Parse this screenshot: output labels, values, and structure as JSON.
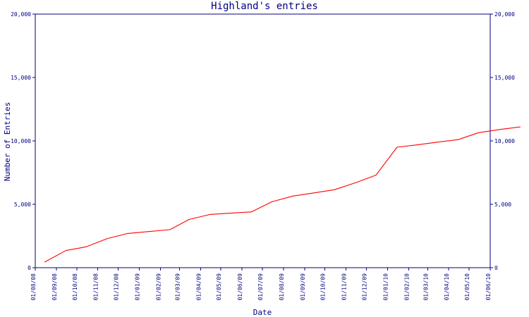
{
  "chart_data": {
    "type": "line",
    "title": "Highland's entries",
    "xlabel": "Date",
    "ylabel": "Number of Entries",
    "x_ticks": [
      "01/08/08",
      "01/09/08",
      "01/10/08",
      "01/11/08",
      "01/12/08",
      "01/01/09",
      "01/02/09",
      "01/03/09",
      "01/04/09",
      "01/05/09",
      "01/06/09",
      "01/07/09",
      "01/08/09",
      "01/09/09",
      "01/10/09",
      "01/11/09",
      "01/12/09",
      "01/01/10",
      "01/02/10",
      "01/03/10",
      "01/04/10",
      "01/05/10",
      "01/06/10"
    ],
    "y_ticks": [
      "0",
      "5,000",
      "10,000",
      "15,000",
      "20,000"
    ],
    "ylim": [
      0,
      20000
    ],
    "grid": false,
    "series": [
      {
        "color": "#ff0000",
        "points": [
          {
            "x": "2008-08-15",
            "y": 450
          },
          {
            "x": "2008-09-15",
            "y": 1350
          },
          {
            "x": "2008-10-15",
            "y": 1650
          },
          {
            "x": "2008-11-15",
            "y": 2300
          },
          {
            "x": "2008-12-15",
            "y": 2700
          },
          {
            "x": "2009-01-15",
            "y": 2850
          },
          {
            "x": "2009-02-15",
            "y": 3000
          },
          {
            "x": "2009-03-15",
            "y": 3800
          },
          {
            "x": "2009-04-15",
            "y": 4200
          },
          {
            "x": "2009-05-15",
            "y": 4300
          },
          {
            "x": "2009-06-15",
            "y": 4400
          },
          {
            "x": "2009-07-15",
            "y": 5200
          },
          {
            "x": "2009-08-15",
            "y": 5650
          },
          {
            "x": "2009-09-15",
            "y": 5900
          },
          {
            "x": "2009-10-15",
            "y": 6150
          },
          {
            "x": "2009-11-15",
            "y": 6700
          },
          {
            "x": "2009-12-15",
            "y": 7300
          },
          {
            "x": "2010-01-15",
            "y": 9500
          },
          {
            "x": "2010-02-15",
            "y": 9700
          },
          {
            "x": "2010-03-15",
            "y": 9900
          },
          {
            "x": "2010-04-15",
            "y": 10100
          },
          {
            "x": "2010-05-15",
            "y": 10650
          },
          {
            "x": "2010-06-15",
            "y": 10900
          },
          {
            "x": "2010-07-15",
            "y": 11100
          }
        ]
      }
    ]
  }
}
